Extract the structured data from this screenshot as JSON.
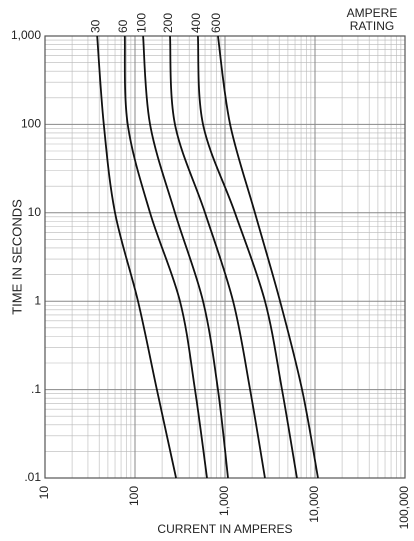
{
  "chart_data": {
    "type": "line",
    "x_label": "CURRENT IN AMPERES",
    "y_label": "TIME IN SECONDS",
    "legend_title": [
      "AMPERE",
      "RATING"
    ],
    "log_x": true,
    "log_y": true,
    "grid": true,
    "minor_grid": true,
    "color": "#111111",
    "xlim": [
      10,
      100000
    ],
    "ylim": [
      0.01,
      1000
    ],
    "xticks": [
      10,
      100,
      {
        "value": 1000,
        "label": "1,000"
      },
      {
        "value": 10000,
        "label": "10,000"
      },
      {
        "value": 100000,
        "label": "100,000"
      }
    ],
    "yticks": [
      {
        "value": 0.01,
        "label": ".01"
      },
      {
        "value": 0.1,
        "label": ".1"
      },
      1,
      10,
      100,
      {
        "value": 1000,
        "label": "1,000"
      }
    ],
    "series": [
      {
        "name": "30",
        "x": [
          38,
          45,
          60,
          108,
          175,
          286
        ],
        "values": [
          1000,
          100,
          10,
          1,
          0.1,
          0.01
        ]
      },
      {
        "name": "60",
        "x": [
          77,
          83,
          147,
          316,
          464,
          631
        ],
        "values": [
          1000,
          100,
          10,
          1,
          0.1,
          0.01
        ]
      },
      {
        "name": "100",
        "x": [
          123,
          147,
          278,
          570,
          835,
          1080
        ],
        "values": [
          1000,
          100,
          10,
          1,
          0.1,
          0.01
        ]
      },
      {
        "name": "200",
        "x": [
          245,
          278,
          600,
          1230,
          1900,
          2780
        ],
        "values": [
          1000,
          100,
          10,
          1,
          0.1,
          0.01
        ]
      },
      {
        "name": "400",
        "x": [
          500,
          570,
          1290,
          2780,
          4300,
          6300
        ],
        "values": [
          1000,
          100,
          10,
          1,
          0.1,
          0.01
        ]
      },
      {
        "name": "600",
        "x": [
          835,
          1140,
          2150,
          4090,
          7180,
          10800
        ],
        "values": [
          1000,
          100,
          10,
          1,
          0.1,
          0.01
        ]
      }
    ]
  }
}
